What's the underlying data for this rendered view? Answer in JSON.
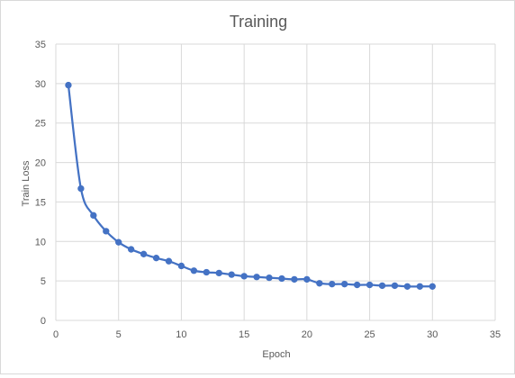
{
  "chart_data": {
    "type": "scatter",
    "title": "Training",
    "xlabel": "Epoch",
    "ylabel": "Train Loss",
    "xlim": [
      0,
      35
    ],
    "ylim": [
      0,
      35
    ],
    "x_ticks": [
      "0",
      "5",
      "10",
      "15",
      "20",
      "25",
      "30",
      "35"
    ],
    "y_ticks": [
      "0",
      "5",
      "10",
      "15",
      "20",
      "25",
      "30",
      "35"
    ],
    "grid": true,
    "legend": "none",
    "smoothed_line": true,
    "series_color": "#4472c4",
    "series": [
      {
        "x": [
          1,
          2,
          3,
          4,
          5,
          6,
          7,
          8,
          9,
          10,
          11,
          12,
          13,
          14,
          15,
          16,
          17,
          18,
          19,
          20,
          21,
          22,
          23,
          24,
          25,
          26,
          27,
          28,
          29,
          30
        ],
        "values": [
          29.8,
          16.7,
          13.3,
          11.3,
          9.9,
          9.0,
          8.4,
          7.9,
          7.5,
          6.9,
          6.3,
          6.1,
          6.0,
          5.8,
          5.6,
          5.5,
          5.4,
          5.3,
          5.2,
          5.2,
          4.7,
          4.6,
          4.6,
          4.5,
          4.5,
          4.4,
          4.4,
          4.3,
          4.3,
          4.3
        ]
      }
    ]
  }
}
